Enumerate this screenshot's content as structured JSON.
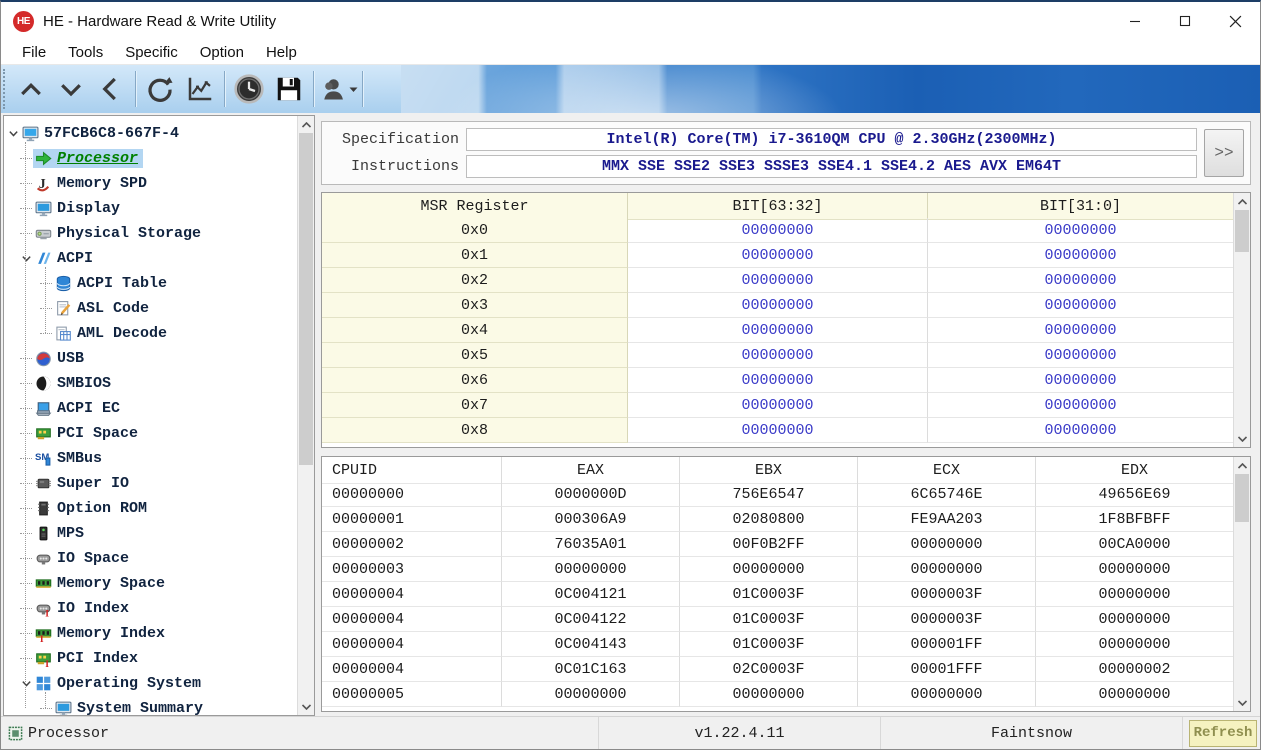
{
  "window": {
    "title": "HE - Hardware Read & Write Utility",
    "logo_text": "HE"
  },
  "menu": {
    "items": [
      "File",
      "Tools",
      "Specific",
      "Option",
      "Help"
    ]
  },
  "toolbar": {
    "groups": [
      [
        {
          "name": "nav-up"
        },
        {
          "name": "nav-down"
        },
        {
          "name": "nav-back"
        }
      ],
      [
        {
          "name": "refresh"
        },
        {
          "name": "chart"
        }
      ],
      [
        {
          "name": "clock"
        },
        {
          "name": "save"
        }
      ],
      [
        {
          "name": "user",
          "dropdown": true
        }
      ]
    ]
  },
  "sidebar": {
    "tree": [
      {
        "label": "57FCB6C8-667F-4",
        "icon": "computer",
        "depth": 0,
        "expandable": true
      },
      {
        "label": "Processor",
        "icon": "arrow-green",
        "depth": 1,
        "selected": true
      },
      {
        "label": "Memory SPD",
        "icon": "memory-spd",
        "depth": 1
      },
      {
        "label": "Display",
        "icon": "display",
        "depth": 1
      },
      {
        "label": "Physical Storage",
        "icon": "storage",
        "depth": 1
      },
      {
        "label": "ACPI",
        "icon": "acpi",
        "depth": 1,
        "expandable": true
      },
      {
        "label": "ACPI Table",
        "icon": "database",
        "depth": 2
      },
      {
        "label": "ASL Code",
        "icon": "doc-edit",
        "depth": 2
      },
      {
        "label": "AML Decode",
        "icon": "doc-table",
        "depth": 2
      },
      {
        "label": "USB",
        "icon": "usb",
        "depth": 1
      },
      {
        "label": "SMBIOS",
        "icon": "smbios",
        "depth": 1
      },
      {
        "label": "ACPI EC",
        "icon": "laptop",
        "depth": 1
      },
      {
        "label": "PCI Space",
        "icon": "pci-card",
        "depth": 1
      },
      {
        "label": "SMBus",
        "icon": "smbus",
        "depth": 1
      },
      {
        "label": "Super IO",
        "icon": "chip",
        "depth": 1
      },
      {
        "label": "Option ROM",
        "icon": "rom",
        "depth": 1
      },
      {
        "label": "MPS",
        "icon": "mps",
        "depth": 1
      },
      {
        "label": "IO Space",
        "icon": "io-conn",
        "depth": 1
      },
      {
        "label": "Memory Space",
        "icon": "ram",
        "depth": 1
      },
      {
        "label": "IO Index",
        "icon": "io-conn-index",
        "depth": 1
      },
      {
        "label": "Memory Index",
        "icon": "ram-index",
        "depth": 1
      },
      {
        "label": "PCI Index",
        "icon": "pci-index",
        "depth": 1
      },
      {
        "label": "Operating System",
        "icon": "os-window",
        "depth": 1,
        "expandable": true
      },
      {
        "label": "System Summary",
        "icon": "display",
        "depth": 2
      }
    ]
  },
  "spec_panel": {
    "specification_label": "Specification",
    "specification_value": "Intel(R) Core(TM) i7-3610QM CPU @ 2.30GHz(2300MHz)",
    "instructions_label": "Instructions",
    "instructions_value": "MMX SSE SSE2 SSE3 SSSE3 SSE4.1 SSE4.2 AES AVX EM64T",
    "expand_button": ">>"
  },
  "msr_table": {
    "headers": [
      "MSR Register",
      "BIT[63:32]",
      "BIT[31:0]"
    ],
    "rows": [
      [
        "0x0",
        "00000000",
        "00000000"
      ],
      [
        "0x1",
        "00000000",
        "00000000"
      ],
      [
        "0x2",
        "00000000",
        "00000000"
      ],
      [
        "0x3",
        "00000000",
        "00000000"
      ],
      [
        "0x4",
        "00000000",
        "00000000"
      ],
      [
        "0x5",
        "00000000",
        "00000000"
      ],
      [
        "0x6",
        "00000000",
        "00000000"
      ],
      [
        "0x7",
        "00000000",
        "00000000"
      ],
      [
        "0x8",
        "00000000",
        "00000000"
      ]
    ]
  },
  "cpuid_table": {
    "headers": [
      "CPUID",
      "EAX",
      "EBX",
      "ECX",
      "EDX"
    ],
    "rows": [
      [
        "00000000",
        "0000000D",
        "756E6547",
        "6C65746E",
        "49656E69"
      ],
      [
        "00000001",
        "000306A9",
        "02080800",
        "FE9AA203",
        "1F8BFBFF"
      ],
      [
        "00000002",
        "76035A01",
        "00F0B2FF",
        "00000000",
        "00CA0000"
      ],
      [
        "00000003",
        "00000000",
        "00000000",
        "00000000",
        "00000000"
      ],
      [
        "00000004",
        "0C004121",
        "01C0003F",
        "0000003F",
        "00000000"
      ],
      [
        "00000004",
        "0C004122",
        "01C0003F",
        "0000003F",
        "00000000"
      ],
      [
        "00000004",
        "0C004143",
        "01C0003F",
        "000001FF",
        "00000000"
      ],
      [
        "00000004",
        "0C01C163",
        "02C0003F",
        "00001FFF",
        "00000002"
      ],
      [
        "00000005",
        "00000000",
        "00000000",
        "00000000",
        "00000000"
      ]
    ]
  },
  "statusbar": {
    "selected_item": "Processor",
    "version": "v1.22.4.11",
    "vendor": "Faintsnow",
    "refresh_label": "Refresh"
  },
  "colors": {
    "logo_red": "#d42a2a",
    "selection_bg": "#b3d6f2",
    "selected_text": "#008000",
    "navy_text": "#1a1a8e",
    "value_blue": "#3a3ac8",
    "cream": "#fbfae6",
    "refresh_bg": "#f5f2c0",
    "refresh_text": "#8f8f4f"
  }
}
